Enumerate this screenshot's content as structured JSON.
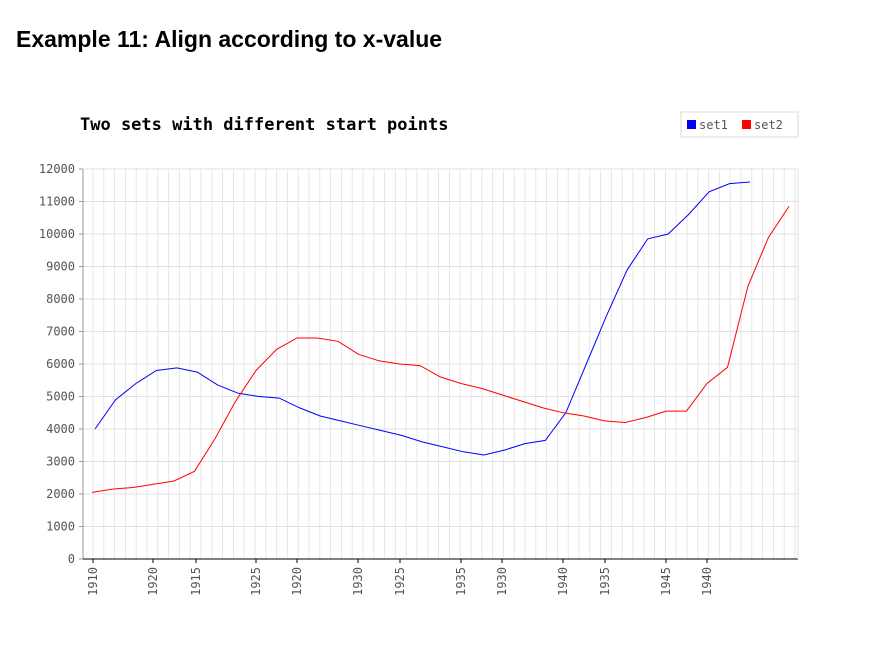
{
  "page": {
    "heading": "Example 11: Align according to x-value"
  },
  "chart_data": {
    "type": "line",
    "title": "Two sets with different start points",
    "xlabel": "",
    "ylabel": "",
    "ylim": [
      0,
      12000
    ],
    "yticks": [
      0,
      1000,
      2000,
      3000,
      4000,
      5000,
      6000,
      7000,
      8000,
      9000,
      10000,
      11000,
      12000
    ],
    "x_tick_labels": [
      "1910",
      "1920",
      "1915",
      "1925",
      "1920",
      "1930",
      "1925",
      "1935",
      "1930",
      "1940",
      "1935",
      "1945",
      "1940"
    ],
    "grid": true,
    "legend_position": "top-right",
    "series": [
      {
        "name": "set1",
        "color": "#0000ff",
        "values": [
          4000,
          4900,
          5400,
          5800,
          5880,
          5750,
          5350,
          5100,
          5000,
          4950,
          4650,
          4400,
          4250,
          4100,
          3950,
          3800,
          3600,
          3450,
          3300,
          3200,
          3350,
          3550,
          3650,
          4500,
          6000,
          7500,
          8900,
          9850,
          10000,
          10600,
          11300,
          11550,
          11600
        ]
      },
      {
        "name": "set2",
        "color": "#ff0000",
        "values": [
          2050,
          2150,
          2200,
          2300,
          2400,
          2700,
          3700,
          4850,
          5800,
          6450,
          6800,
          6800,
          6700,
          6300,
          6100,
          6000,
          5950,
          5600,
          5400,
          5250,
          5050,
          4850,
          4650,
          4500,
          4400,
          4250,
          4200,
          4350,
          4550,
          4550,
          5400,
          5900,
          8400,
          9900,
          10850
        ]
      }
    ]
  }
}
